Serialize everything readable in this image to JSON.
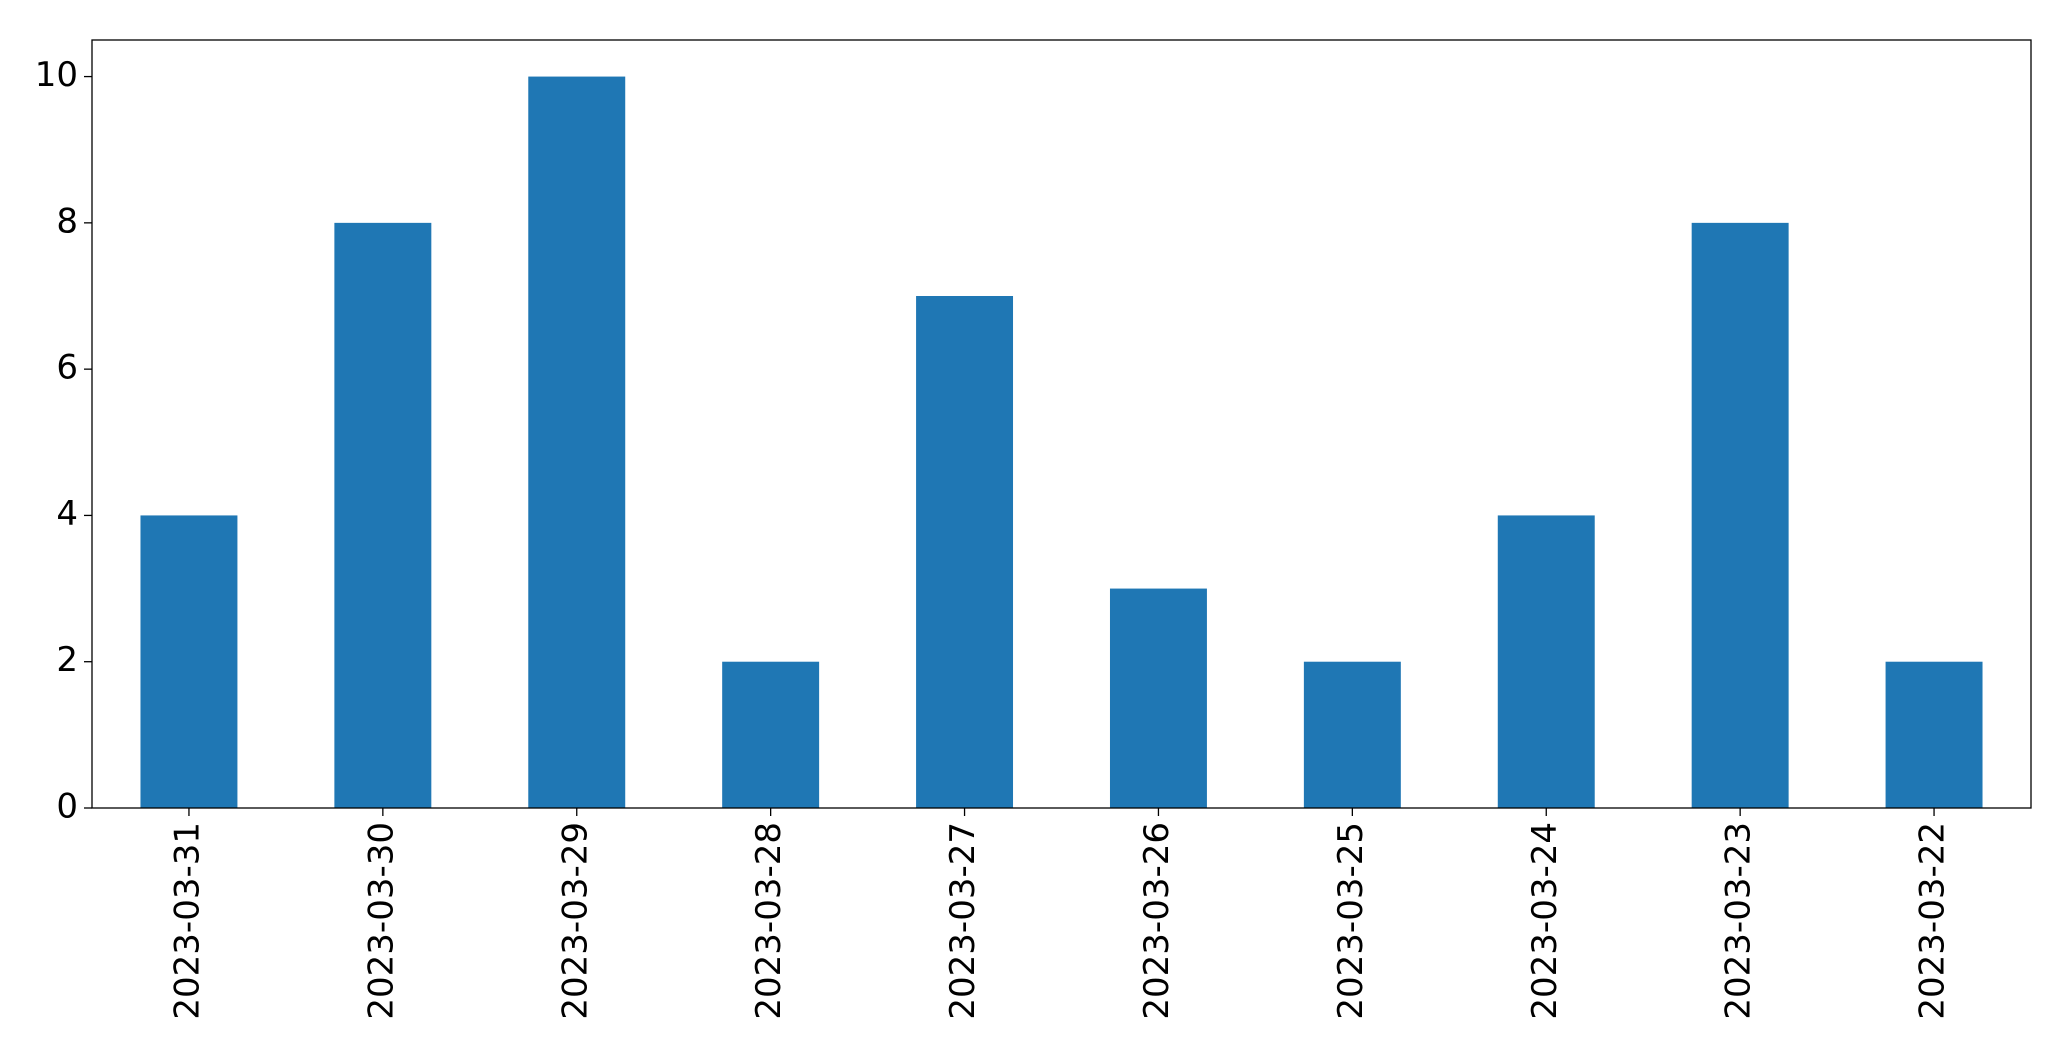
{
  "chart_data": {
    "type": "bar",
    "categories": [
      "2023-03-31",
      "2023-03-30",
      "2023-03-29",
      "2023-03-28",
      "2023-03-27",
      "2023-03-26",
      "2023-03-25",
      "2023-03-24",
      "2023-03-23",
      "2023-03-22"
    ],
    "values": [
      4,
      8,
      10,
      2,
      7,
      3,
      2,
      4,
      8,
      2
    ],
    "color": "#1f77b4",
    "ylim": [
      0,
      10.5
    ],
    "yticks": [
      0,
      2,
      4,
      6,
      8,
      10
    ],
    "grid": false
  }
}
